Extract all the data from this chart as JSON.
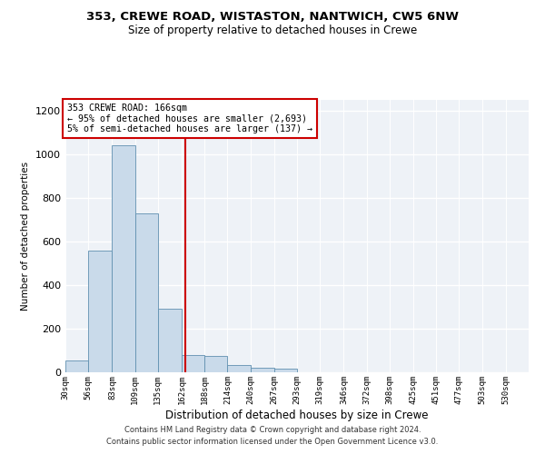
{
  "title1": "353, CREWE ROAD, WISTASTON, NANTWICH, CW5 6NW",
  "title2": "Size of property relative to detached houses in Crewe",
  "xlabel": "Distribution of detached houses by size in Crewe",
  "ylabel": "Number of detached properties",
  "bar_color": "#c9daea",
  "bar_edge_color": "#6090b0",
  "property_line_x": 166,
  "property_line_color": "#cc0000",
  "annotation_box_color": "#cc0000",
  "annotation_line1": "353 CREWE ROAD: 166sqm",
  "annotation_line2": "← 95% of detached houses are smaller (2,693)",
  "annotation_line3": "5% of semi-detached houses are larger (137) →",
  "bin_edges": [
    30,
    56,
    83,
    109,
    135,
    162,
    188,
    214,
    240,
    267,
    293,
    319,
    346,
    372,
    398,
    425,
    451,
    477,
    503,
    530,
    556
  ],
  "bar_heights": [
    55,
    560,
    1040,
    730,
    290,
    80,
    75,
    35,
    20,
    15,
    0,
    0,
    0,
    0,
    0,
    0,
    0,
    0,
    0,
    0
  ],
  "ylim": [
    0,
    1250
  ],
  "yticks": [
    0,
    200,
    400,
    600,
    800,
    1000,
    1200
  ],
  "footnote1": "Contains HM Land Registry data © Crown copyright and database right 2024.",
  "footnote2": "Contains public sector information licensed under the Open Government Licence v3.0.",
  "bg_color": "#eef2f7",
  "title1_fontsize": 9.5,
  "title2_fontsize": 8.5
}
